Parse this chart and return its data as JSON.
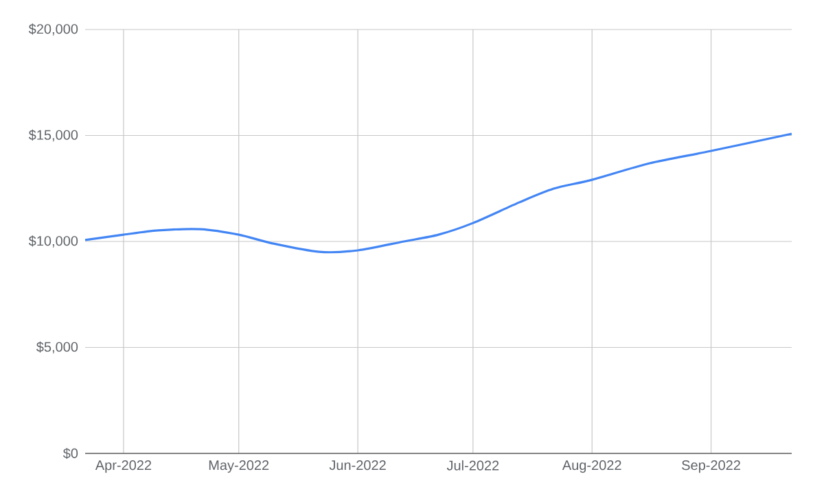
{
  "chart_data": {
    "type": "line",
    "x": [
      "2022-03-22",
      "2022-04-01",
      "2022-04-10",
      "2022-04-21",
      "2022-05-01",
      "2022-05-10",
      "2022-05-22",
      "2022-06-01",
      "2022-06-13",
      "2022-06-22",
      "2022-07-01",
      "2022-07-13",
      "2022-07-22",
      "2022-08-01",
      "2022-08-16",
      "2022-09-01",
      "2022-09-22"
    ],
    "series": [
      {
        "color": "#4285f4",
        "values": [
          10070,
          10320,
          10520,
          10580,
          10320,
          9900,
          9510,
          9580,
          10000,
          10320,
          10870,
          11840,
          12490,
          12910,
          13690,
          14270,
          15080
        ]
      }
    ],
    "xlim": [
      "2022-03-22",
      "2022-09-22"
    ],
    "xticks": [
      {
        "value": "2022-04-01",
        "label": "Apr-2022"
      },
      {
        "value": "2022-05-01",
        "label": "May-2022"
      },
      {
        "value": "2022-06-01",
        "label": "Jun-2022"
      },
      {
        "value": "2022-07-01",
        "label": "Jul-2022"
      },
      {
        "value": "2022-08-01",
        "label": "Aug-2022"
      },
      {
        "value": "2022-09-01",
        "label": "Sep-2022"
      }
    ],
    "ylim": [
      0,
      20000
    ],
    "yticks": [
      {
        "value": 0,
        "label": "$0"
      },
      {
        "value": 5000,
        "label": "$5,000"
      },
      {
        "value": 10000,
        "label": "$10,000"
      },
      {
        "value": 15000,
        "label": "$15,000"
      },
      {
        "value": 20000,
        "label": "$20,000"
      }
    ],
    "grid": true,
    "marker": "none",
    "line_style": "solid"
  }
}
